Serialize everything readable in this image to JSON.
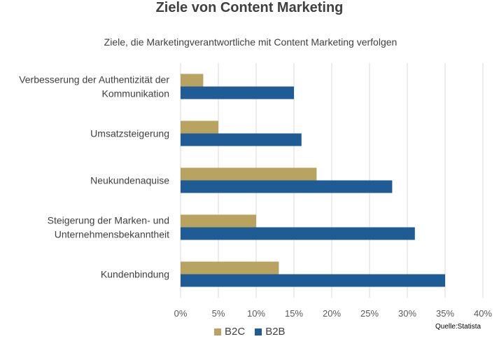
{
  "chart_data": {
    "type": "bar",
    "orientation": "horizontal",
    "title": "Ziele von Content Marketing",
    "subtitle": "Ziele, die Marketingverantwortliche mit Content Marketing verfolgen",
    "source": "Quelle:Statista",
    "categories": [
      [
        "Verbesserung der Authentizität der",
        "Kommunikation"
      ],
      [
        "Umsatzsteigerung"
      ],
      [
        "Neukundenaquise"
      ],
      [
        "Steigerung der Marken- und",
        "Unternehmensbekanntheit"
      ],
      [
        "Kundenbindung"
      ]
    ],
    "series": [
      {
        "name": "B2C",
        "color": "#b8a460",
        "values": [
          3,
          5,
          18,
          10,
          13
        ]
      },
      {
        "name": "B2B",
        "color": "#1f5b94",
        "values": [
          15,
          16,
          28,
          31,
          35
        ]
      }
    ],
    "xlim": [
      0,
      40
    ],
    "xticks": [
      "0%",
      "5%",
      "10%",
      "15%",
      "20%",
      "25%",
      "30%",
      "35%",
      "40%"
    ],
    "grid": true,
    "legend_position": "bottom"
  }
}
